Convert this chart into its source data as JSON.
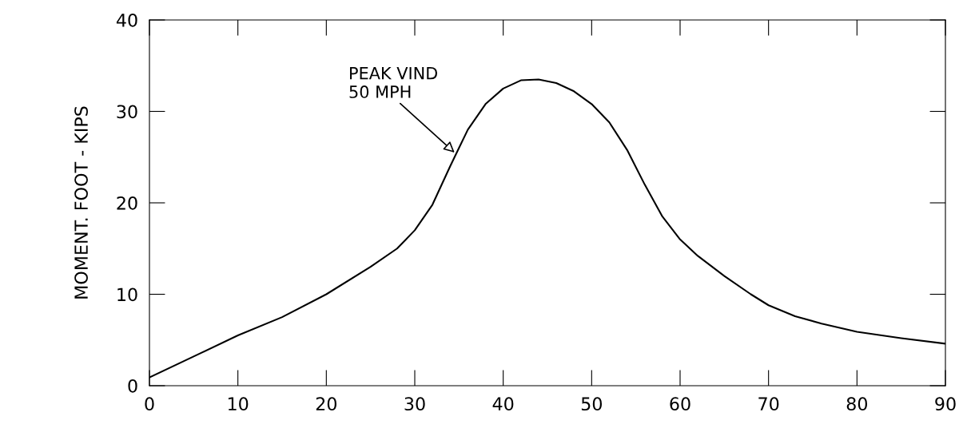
{
  "chart_data": {
    "type": "line",
    "ylabel": "MOMENT. FOOT - KIPS",
    "x": [
      0,
      5,
      10,
      15,
      20,
      25,
      28,
      30,
      32,
      34,
      35,
      36,
      38,
      40,
      42,
      44,
      46,
      48,
      50,
      52,
      54,
      56,
      58,
      60,
      62,
      65,
      68,
      70,
      73,
      76,
      80,
      85,
      90
    ],
    "series": [
      {
        "color": "#000000",
        "values": [
          0.9,
          3.2,
          5.5,
          7.5,
          10,
          13,
          15,
          17,
          19.8,
          24,
          26,
          28,
          30.8,
          32.5,
          33.4,
          33.5,
          33.1,
          32.2,
          30.8,
          28.8,
          25.8,
          22,
          18.5,
          16,
          14.2,
          12,
          10,
          8.8,
          7.6,
          6.8,
          5.9,
          5.2,
          4.6
        ]
      }
    ],
    "xlim": [
      0,
      90
    ],
    "xticks": [
      0,
      10,
      20,
      30,
      40,
      50,
      60,
      70,
      80,
      90
    ],
    "ylim": [
      0,
      40
    ],
    "yticks": [
      0,
      10,
      20,
      30,
      40
    ],
    "grid": false,
    "marker": "none",
    "line_style": "solid",
    "annotations": [
      {
        "text": "PEAK VIND\n50 MPH",
        "x": 34.5,
        "y": 25.5
      }
    ]
  }
}
